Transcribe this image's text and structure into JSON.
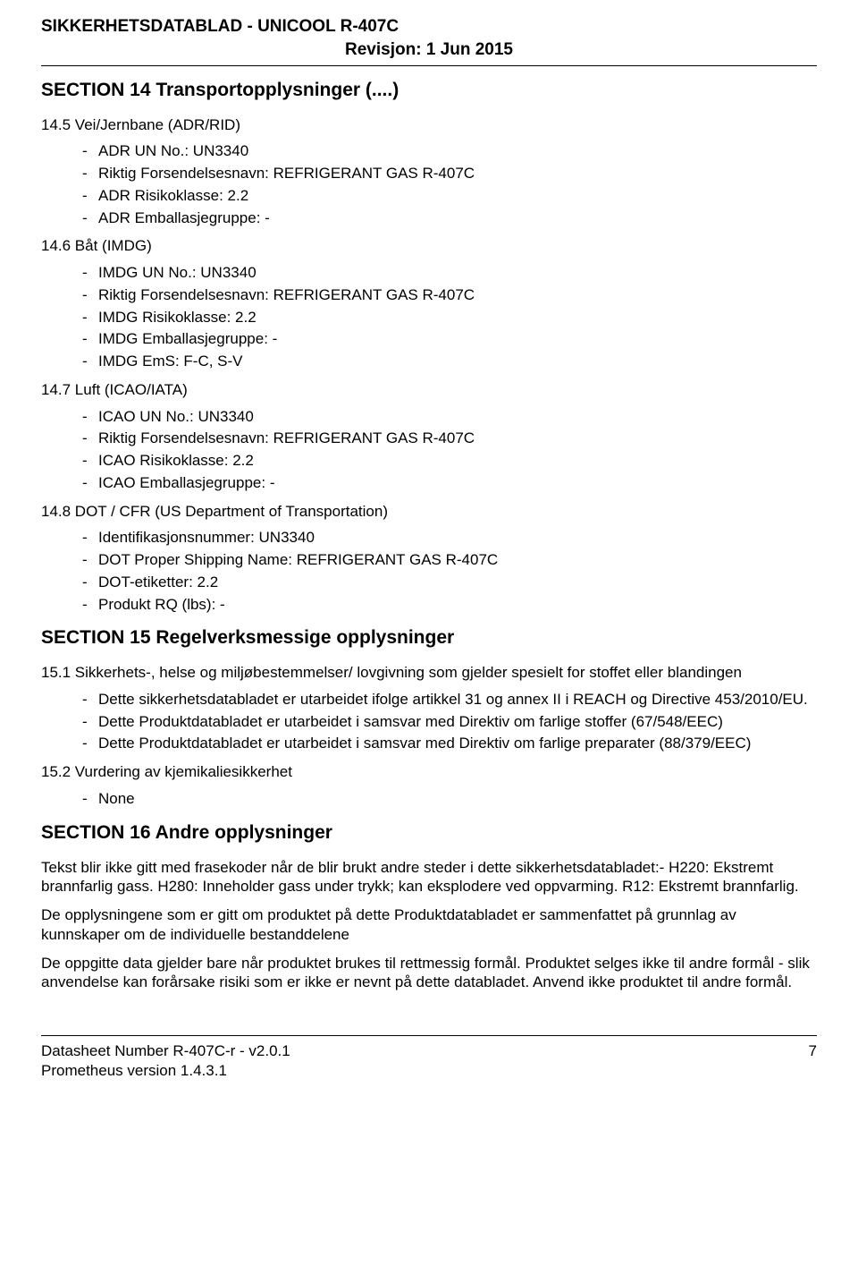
{
  "header": {
    "title": "SIKKERHETSDATABLAD  -  UNICOOL R-407C",
    "revision": "Revisjon: 1  Jun  2015"
  },
  "section14": {
    "title": "SECTION 14   Transportopplysninger (....)",
    "sub145": {
      "heading": "14.5 Vei/Jernbane (ADR/RID)",
      "items": [
        "ADR UN No.: UN3340",
        "Riktig Forsendelsesnavn: REFRIGERANT GAS R-407C",
        "ADR Risikoklasse: 2.2",
        "ADR Emballasjegruppe: -"
      ]
    },
    "sub146": {
      "heading": "14.6 Båt (IMDG)",
      "items": [
        "IMDG UN No.: UN3340",
        "Riktig Forsendelsesnavn: REFRIGERANT GAS R-407C",
        "IMDG Risikoklasse: 2.2",
        "IMDG Emballasjegruppe: -",
        "IMDG EmS: F-C, S-V"
      ]
    },
    "sub147": {
      "heading": "14.7 Luft (ICAO/IATA)",
      "items": [
        "ICAO UN No.: UN3340",
        "Riktig Forsendelsesnavn: REFRIGERANT GAS R-407C",
        "ICAO Risikoklasse: 2.2",
        "ICAO Emballasjegruppe: -"
      ]
    },
    "sub148": {
      "heading": "14.8 DOT / CFR (US Department of Transportation)",
      "items": [
        "Identifikasjonsnummer: UN3340",
        "DOT Proper Shipping Name: REFRIGERANT GAS R-407C",
        "DOT-etiketter: 2.2",
        "Produkt RQ (lbs): -"
      ]
    }
  },
  "section15": {
    "title": "SECTION 15   Regelverksmessige opplysninger",
    "sub151": {
      "heading": "15.1 Sikkerhets-, helse og miljøbestemmelser/ lovgivning som gjelder spesielt for stoffet eller blandingen",
      "items": [
        "Dette sikkerhetsdatabladet er utarbeidet ifolge artikkel 31 og annex II i REACH og Directive 453/2010/EU.",
        "Dette Produktdatabladet er utarbeidet i samsvar med Direktiv om farlige stoffer (67/548/EEC)",
        "Dette Produktdatabladet er utarbeidet i samsvar med Direktiv om farlige preparater (88/379/EEC)"
      ]
    },
    "sub152": {
      "heading": "15.2 Vurdering av kjemikaliesikkerhet",
      "items": [
        "None"
      ]
    }
  },
  "section16": {
    "title": "SECTION 16   Andre opplysninger",
    "paragraphs": [
      "Tekst blir ikke gitt med frasekoder når de blir brukt andre steder i dette sikkerhetsdatabladet:- H220: Ekstremt brannfarlig gass. H280: Inneholder gass under trykk; kan eksplodere ved oppvarming. R12: Ekstremt brannfarlig.",
      "De opplysningene som er gitt om produktet på dette Produktdatabladet er sammenfattet på grunnlag av kunnskaper om de individuelle bestanddelene",
      "De oppgitte data gjelder bare når produktet brukes til rettmessig formål. Produktet selges ikke til andre formål - slik anvendelse kan forårsake risiki som er ikke er nevnt på dette databladet. Anvend ikke produktet til andre formål."
    ]
  },
  "footer": {
    "datasheet": "Datasheet Number R-407C-r - v2.0.1",
    "version": "Prometheus version 1.4.3.1",
    "page": "7"
  }
}
